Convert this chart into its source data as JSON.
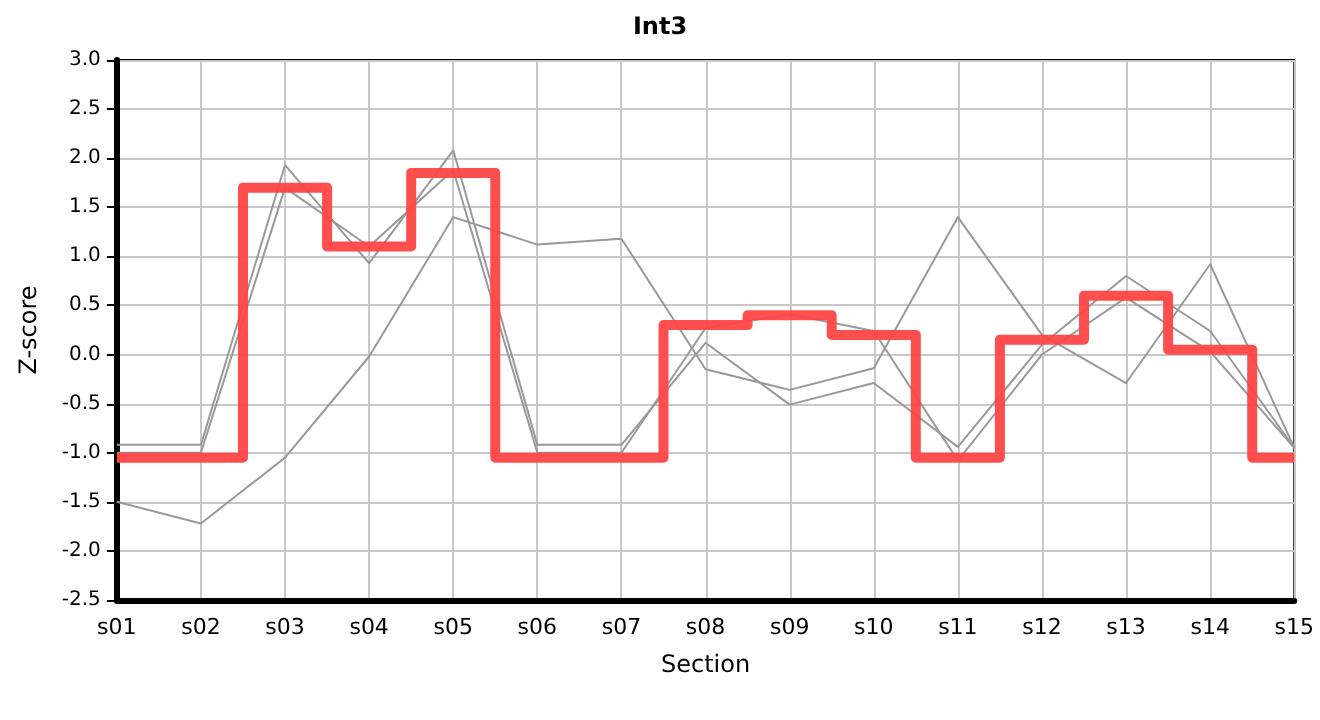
{
  "chart_data": {
    "type": "line",
    "title": "Int3",
    "xlabel": "Section",
    "ylabel": "Z-score",
    "categories": [
      "s01",
      "s02",
      "s03",
      "s04",
      "s05",
      "s06",
      "s07",
      "s08",
      "s09",
      "s10",
      "s11",
      "s12",
      "s13",
      "s14",
      "s15"
    ],
    "series": [
      {
        "color": "#999999",
        "values": [
          -1.5,
          -1.72,
          -1.05,
          -0.02,
          1.4,
          1.12,
          1.18,
          -0.15,
          -0.36,
          -0.14,
          1.4,
          0.2,
          -0.29,
          0.92,
          -0.95
        ]
      },
      {
        "color": "#999999",
        "values": [
          -0.92,
          -0.92,
          1.93,
          0.93,
          2.08,
          -0.92,
          -0.92,
          0.12,
          -0.51,
          -0.29,
          -0.94,
          0.1,
          0.8,
          0.24,
          -0.95
        ]
      },
      {
        "color": "#999999",
        "values": [
          -1.0,
          -1.0,
          1.7,
          1.1,
          1.88,
          -1.0,
          -1.0,
          0.27,
          0.41,
          0.24,
          -1.08,
          0.0,
          0.58,
          0.03,
          -0.95
        ]
      },
      {
        "type": "step",
        "color": "#ff4444",
        "values": [
          -1.05,
          -1.05,
          1.7,
          1.1,
          1.85,
          -1.05,
          -1.05,
          0.3,
          0.4,
          0.2,
          -1.05,
          0.15,
          0.6,
          0.05,
          -1.05
        ]
      }
    ],
    "ylim": [
      -2.5,
      3.0
    ],
    "yticks": [
      {
        "value": -2.5,
        "label": "-2.5"
      },
      {
        "value": -2,
        "label": "-2.0"
      },
      {
        "value": -1.5,
        "label": "-1.5"
      },
      {
        "value": -1,
        "label": "-1.0"
      },
      {
        "value": -0.5,
        "label": "-0.5"
      },
      {
        "value": 0,
        "label": "0.0"
      },
      {
        "value": 0.5,
        "label": "0.5"
      },
      {
        "value": 1,
        "label": "1.0"
      },
      {
        "value": 1.5,
        "label": "1.5"
      },
      {
        "value": 2,
        "label": "2.0"
      },
      {
        "value": 2.5,
        "label": "2.5"
      },
      {
        "value": 3,
        "label": "3.0"
      }
    ],
    "grid": true,
    "marker": "none"
  }
}
